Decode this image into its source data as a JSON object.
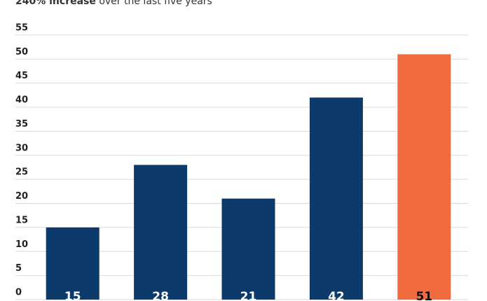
{
  "chart_data": {
    "type": "bar",
    "subtitle": {
      "highlight": "240% increase",
      "rest": "over the last five years"
    },
    "categories": [
      null,
      null,
      null,
      null,
      null
    ],
    "values": [
      15,
      28,
      21,
      42,
      51
    ],
    "colors": [
      "#0b3a6b",
      "#0b3a6b",
      "#0b3a6b",
      "#0b3a6b",
      "#f26b3f"
    ],
    "ylim": [
      0,
      55
    ],
    "yticks": [
      0,
      5,
      10,
      15,
      20,
      25,
      30,
      35,
      40,
      45,
      50,
      55
    ],
    "grid": true
  }
}
